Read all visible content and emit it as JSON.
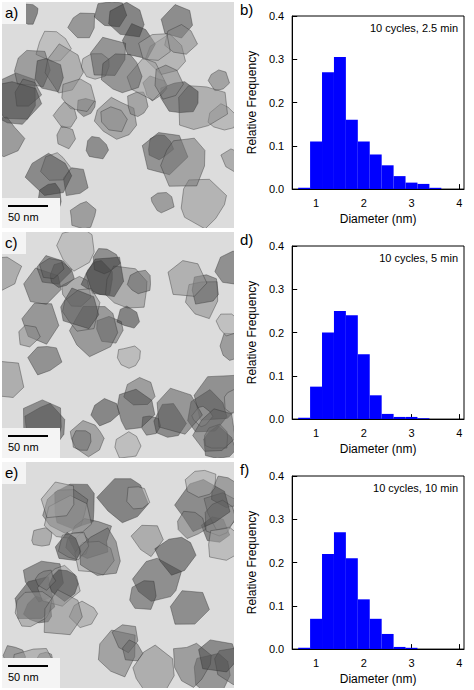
{
  "chart_data": [
    {
      "type": "histogram",
      "panel": "b)",
      "title": "10 cycles, 2.5 min",
      "x_label": "Diameter (nm)",
      "y_label": "Relative Frequency",
      "bins": [
        0.625,
        0.875,
        1.125,
        1.375,
        1.625,
        1.875,
        2.125,
        2.375,
        2.625,
        2.875,
        3.125,
        3.375,
        3.625
      ],
      "values": [
        0.003,
        0.11,
        0.27,
        0.305,
        0.16,
        0.11,
        0.08,
        0.055,
        0.03,
        0.015,
        0.012,
        0.003
      ],
      "color": "#0000ff",
      "xlim": [
        0.5,
        4.1
      ],
      "xticks": [
        1,
        2,
        3,
        4
      ],
      "ylim": [
        0,
        0.4
      ],
      "yticks": [
        {
          "value": 0,
          "label": "0.0"
        },
        {
          "value": 0.1,
          "label": "0.1"
        },
        {
          "value": 0.2,
          "label": "0.2"
        },
        {
          "value": 0.3,
          "label": "0.3"
        },
        {
          "value": 0.4,
          "label": "0.4"
        }
      ],
      "grid": false
    },
    {
      "type": "histogram",
      "panel": "d)",
      "title": "10 cycles, 5 min",
      "x_label": "Diameter (nm)",
      "y_label": "Relative Frequency",
      "bins": [
        0.625,
        0.875,
        1.125,
        1.375,
        1.625,
        1.875,
        2.125,
        2.375,
        2.625,
        2.875,
        3.125,
        3.375,
        3.625
      ],
      "values": [
        0.003,
        0.075,
        0.2,
        0.25,
        0.24,
        0.15,
        0.055,
        0.012,
        0.005,
        0.005,
        0.002,
        0
      ],
      "color": "#0000ff",
      "xlim": [
        0.5,
        4.1
      ],
      "xticks": [
        1,
        2,
        3,
        4
      ],
      "ylim": [
        0,
        0.4
      ],
      "yticks": [
        {
          "value": 0,
          "label": "0.0"
        },
        {
          "value": 0.1,
          "label": "0.1"
        },
        {
          "value": 0.2,
          "label": "0.2"
        },
        {
          "value": 0.3,
          "label": "0.3"
        },
        {
          "value": 0.4,
          "label": "0.4"
        }
      ],
      "grid": false
    },
    {
      "type": "histogram",
      "panel": "f)",
      "title": "10 cycles, 10 min",
      "x_label": "Diameter (nm)",
      "y_label": "Relative Frequency",
      "bins": [
        0.625,
        0.875,
        1.125,
        1.375,
        1.625,
        1.875,
        2.125,
        2.375,
        2.625,
        2.875,
        3.125,
        3.375,
        3.625
      ],
      "values": [
        0.003,
        0.07,
        0.22,
        0.27,
        0.21,
        0.115,
        0.07,
        0.035,
        0.005,
        0.003,
        0,
        0
      ],
      "color": "#0000ff",
      "xlim": [
        0.5,
        4.1
      ],
      "xticks": [
        1,
        2,
        3,
        4
      ],
      "ylim": [
        0,
        0.4
      ],
      "yticks": [
        {
          "value": 0,
          "label": "0.0"
        },
        {
          "value": 0.1,
          "label": "0.1"
        },
        {
          "value": 0.2,
          "label": "0.2"
        },
        {
          "value": 0.3,
          "label": "0.3"
        },
        {
          "value": 0.4,
          "label": "0.4"
        }
      ],
      "grid": false
    }
  ],
  "images": [
    {
      "panel": "a)",
      "scale_bar": "50 nm"
    },
    {
      "panel": "c)",
      "scale_bar": "50 nm"
    },
    {
      "panel": "e)",
      "scale_bar": "50 nm"
    }
  ]
}
